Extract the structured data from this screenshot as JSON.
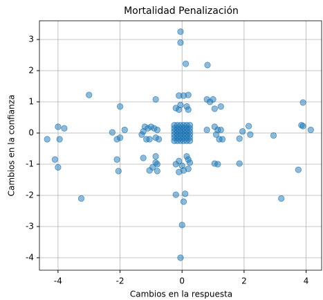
{
  "chart_data": {
    "type": "scatter",
    "title": "Mortalidad Penalización",
    "x_label": "Cambios en la respuesta",
    "y_label": "Cambios en la confianza",
    "color": "#1f77b4",
    "grid": true,
    "xlim": [
      -4.6,
      4.5
    ],
    "ylim": [
      -4.4,
      3.6
    ],
    "xticks": [
      -4,
      -2,
      0,
      2,
      4
    ],
    "yticks": [
      -4,
      -3,
      -2,
      -1,
      0,
      1,
      2,
      3
    ],
    "x": [
      -0.05,
      -0.05,
      0.12,
      0.82,
      -3.0,
      -2.0,
      -0.85,
      0.2,
      -0.1,
      0.05,
      0.8,
      0.9,
      1.0,
      1.25,
      1.05,
      3.9,
      -0.2,
      -0.05,
      0.15,
      0.2,
      -0.1,
      -4.0,
      -3.8,
      -4.35,
      -3.95,
      -2.25,
      -1.85,
      -2.0,
      -2.1,
      -1.2,
      -1.25,
      -1.1,
      -1.0,
      -0.9,
      -0.8,
      -1.15,
      -1.05,
      -0.85,
      -0.75,
      -1.3,
      0.8,
      1.05,
      1.15,
      1.25,
      1.1,
      1.2,
      1.3,
      1.85,
      1.95,
      2.15,
      2.2,
      2.95,
      3.85,
      3.9,
      4.15,
      -4.1,
      -4.0,
      -2.1,
      -2.05,
      -1.25,
      -1.05,
      -0.85,
      -0.85,
      -0.8,
      -0.95,
      -0.8,
      -0.2,
      -0.1,
      0.2,
      0.15,
      0.25,
      0.2,
      0.05,
      -0.1,
      0.0,
      1.05,
      1.15,
      1.85,
      3.75,
      -3.25,
      -0.2,
      0.1,
      0.05,
      3.2,
      0.0,
      -0.05,
      -0.25,
      -0.15,
      -0.05,
      0.05,
      0.15,
      0.25,
      -0.25,
      -0.15,
      -0.05,
      0.05,
      0.15,
      0.25,
      -0.25,
      -0.15,
      -0.05,
      0.05,
      0.15,
      0.25,
      -0.25,
      -0.15,
      -0.05,
      0.05,
      0.15,
      0.25,
      -0.25,
      -0.15,
      -0.05,
      0.05,
      0.15,
      0.25,
      -0.25,
      -0.15,
      -0.05,
      0.05,
      0.15,
      0.25
    ],
    "y": [
      3.25,
      2.9,
      2.22,
      2.18,
      1.22,
      0.85,
      1.08,
      1.22,
      1.2,
      1.2,
      1.08,
      1.0,
      1.08,
      0.85,
      0.78,
      0.98,
      0.8,
      0.9,
      0.85,
      0.75,
      0.75,
      0.2,
      0.15,
      -0.2,
      -0.2,
      0.02,
      0.1,
      -0.15,
      -0.2,
      0.2,
      0.05,
      0.15,
      0.2,
      0.15,
      0.1,
      -0.2,
      -0.2,
      -0.15,
      -0.2,
      -0.05,
      0.1,
      0.2,
      0.1,
      0.1,
      -0.05,
      -0.2,
      -0.2,
      -0.18,
      0.05,
      0.22,
      -0.05,
      -0.08,
      0.25,
      0.22,
      0.1,
      -0.85,
      -1.1,
      -0.85,
      -1.22,
      -0.8,
      -1.2,
      -0.75,
      -0.95,
      -1.0,
      -1.1,
      -1.22,
      -1.0,
      -0.9,
      -0.85,
      -0.75,
      -0.95,
      -1.15,
      -1.2,
      -1.25,
      -1.05,
      -0.98,
      -1.0,
      -0.98,
      -1.18,
      -2.1,
      -1.98,
      -1.95,
      -2.2,
      -2.1,
      -2.95,
      -4.0,
      -0.25,
      -0.25,
      -0.25,
      -0.25,
      -0.25,
      -0.25,
      -0.15,
      -0.15,
      -0.15,
      -0.15,
      -0.15,
      -0.15,
      -0.05,
      -0.05,
      -0.05,
      -0.05,
      -0.05,
      -0.05,
      0.05,
      0.05,
      0.05,
      0.05,
      0.05,
      0.05,
      0.15,
      0.15,
      0.15,
      0.15,
      0.15,
      0.15,
      0.25,
      0.25,
      0.25,
      0.25,
      0.25,
      0.25
    ]
  }
}
